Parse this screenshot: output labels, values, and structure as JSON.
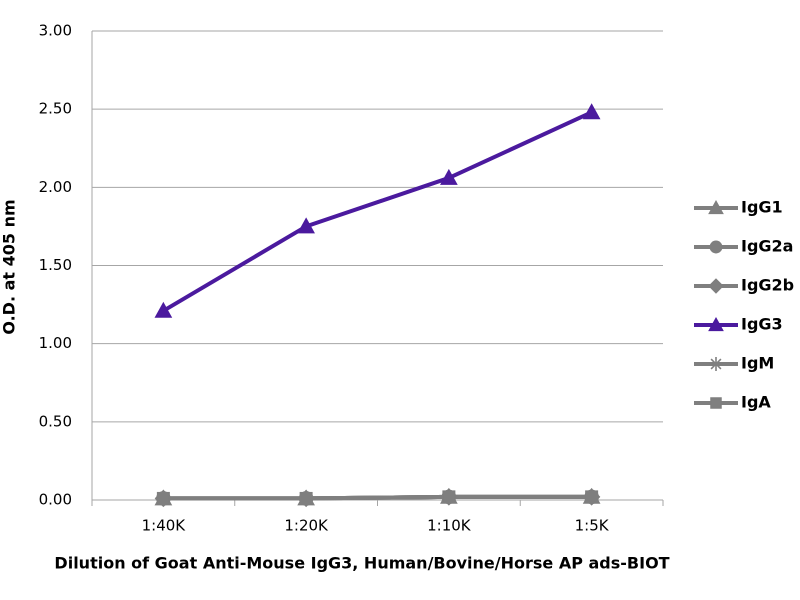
{
  "chart_data": {
    "type": "line",
    "x_label": "Dilution of Goat Anti-Mouse IgG3, Human/Bovine/Horse AP ads-BIOT",
    "y_label": "O.D. at 405 nm",
    "categories": [
      "1:40K",
      "1:20K",
      "1:10K",
      "1:5K"
    ],
    "ylim": [
      0,
      3
    ],
    "yticks": [
      {
        "value": 0,
        "label": "0.00"
      },
      {
        "value": 0.5,
        "label": "0.50"
      },
      {
        "value": 1,
        "label": "1.00"
      },
      {
        "value": 1.5,
        "label": "1.50"
      },
      {
        "value": 2,
        "label": "2.00"
      },
      {
        "value": 2.5,
        "label": "2.50"
      },
      {
        "value": 3,
        "label": "3.00"
      }
    ],
    "grid": true,
    "legend": "right",
    "series": [
      {
        "name": "IgG1",
        "color": "#7f7f7f",
        "marker": "triangle",
        "values": [
          0.01,
          0.01,
          0.02,
          0.02
        ]
      },
      {
        "name": "IgG2a",
        "color": "#7f7f7f",
        "marker": "circle",
        "values": [
          0.01,
          0.01,
          0.02,
          0.02
        ]
      },
      {
        "name": "IgG2b",
        "color": "#7f7f7f",
        "marker": "diamond",
        "values": [
          0.01,
          0.01,
          0.02,
          0.02
        ]
      },
      {
        "name": "IgG3",
        "color": "#4b1a9e",
        "marker": "triangle",
        "values": [
          1.21,
          1.75,
          2.06,
          2.48
        ]
      },
      {
        "name": "IgM",
        "color": "#7f7f7f",
        "marker": "asterisk",
        "values": [
          0.01,
          0.01,
          0.02,
          0.02
        ]
      },
      {
        "name": "IgA",
        "color": "#7f7f7f",
        "marker": "square",
        "values": [
          0.01,
          0.01,
          0.02,
          0.02
        ]
      }
    ]
  }
}
